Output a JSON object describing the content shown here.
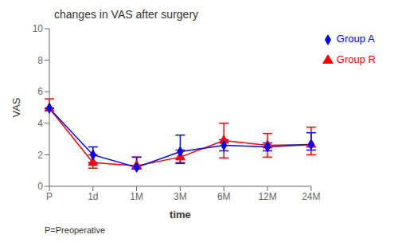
{
  "chart_data": {
    "type": "line",
    "title": "changes in VAS after surgery",
    "xlabel": "time",
    "ylabel": "VAS",
    "footnote": "P=Preoperative",
    "categories": [
      "P",
      "1d",
      "1M",
      "3M",
      "6M",
      "12M",
      "24M"
    ],
    "series": [
      {
        "name": "Group R",
        "color": "#FF0000",
        "marker": "triangle",
        "values": [
          4.95,
          1.5,
          1.3,
          1.85,
          2.9,
          2.6,
          2.65
        ],
        "error_low": [
          0.0,
          0.35,
          0.2,
          0.35,
          1.1,
          0.75,
          0.65
        ],
        "error_high": [
          0.6,
          0.5,
          0.55,
          0.45,
          1.1,
          0.75,
          1.1
        ]
      },
      {
        "name": "Group A",
        "color": "#0000FF",
        "marker": "diamond",
        "values": [
          4.95,
          2.0,
          1.2,
          2.2,
          2.6,
          2.5,
          2.65
        ],
        "error_low": [
          0.0,
          0.5,
          0.1,
          0.75,
          0.35,
          0.25,
          0.35
        ],
        "error_high": [
          0.0,
          0.5,
          0.65,
          1.05,
          0.35,
          0.25,
          0.75
        ]
      }
    ],
    "ylim": [
      0,
      10
    ],
    "yticks": [
      0,
      2,
      4,
      6,
      8,
      10
    ],
    "grid": false,
    "legend": "right"
  }
}
